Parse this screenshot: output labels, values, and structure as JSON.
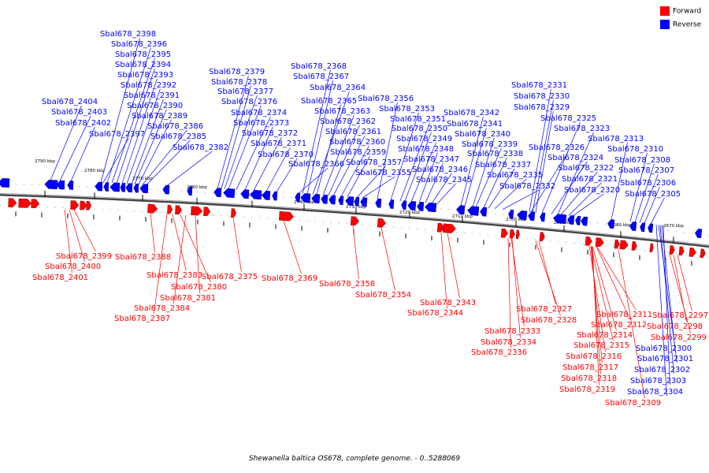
{
  "legend": {
    "forward_label": "Forward",
    "reverse_label": "Reverse",
    "forward_color": "#ff0000",
    "reverse_color": "#0000ff"
  },
  "caption": "Shewanella baltica OS678, complete genome. - 0..5288069",
  "ticks": [
    "2790 kbp",
    "2780 kbp",
    "2770 kbp",
    "2760 kbp",
    "2750 kbp",
    "2740 kbp",
    "2730 kbp",
    "2720 kbp",
    "2710 kbp",
    "2700 kbp",
    "2690 kbp",
    "2680 kbp",
    "2670 kbp"
  ],
  "reverse_labels": [
    "Sbal678_2398",
    "Sbal678_2396",
    "Sbal678_2395",
    "Sbal678_2394",
    "Sbal678_2393",
    "Sbal678_2392",
    "Sbal678_2391",
    "Sbal678_2390",
    "Sbal678_2389",
    "Sbal678_2386",
    "Sbal678_2385",
    "Sbal678_2382",
    "Sbal678_2397",
    "Sbal678_2404",
    "Sbal678_2403",
    "Sbal678_2402",
    "Sbal678_2379",
    "Sbal678_2378",
    "Sbal678_2377",
    "Sbal678_2376",
    "Sbal678_2374",
    "Sbal678_2373",
    "Sbal678_2372",
    "Sbal678_2371",
    "Sbal678_2370",
    "Sbal678_2366",
    "Sbal678_2368",
    "Sbal678_2367",
    "Sbal678_2364",
    "Sbal678_2365",
    "Sbal678_2363",
    "Sbal678_2362",
    "Sbal678_2361",
    "Sbal678_2360",
    "Sbal678_2359",
    "Sbal678_2357",
    "Sbal678_2355",
    "Sbal678_2356",
    "Sbal678_2353",
    "Sbal678_2351",
    "Sbal678_2350",
    "Sbal678_2349",
    "Sbal678_2348",
    "Sbal678_2347",
    "Sbal678_2346",
    "Sbal678_2345",
    "Sbal678_2342",
    "Sbal678_2341",
    "Sbal678_2340",
    "Sbal678_2339",
    "Sbal678_2338",
    "Sbal678_2337",
    "Sbal678_2335",
    "Sbal678_2332",
    "Sbal678_2331",
    "Sbal678_2330",
    "Sbal678_2329",
    "Sbal678_2325",
    "Sbal678_2323",
    "Sbal678_2326",
    "Sbal678_2324",
    "Sbal678_2322",
    "Sbal678_2321",
    "Sbal678_2320",
    "Sbal678_2313",
    "Sbal678_2310",
    "Sbal678_2308",
    "Sbal678_2307",
    "Sbal678_2306",
    "Sbal678_2305"
  ],
  "forward_labels": [
    "Sbal678_2399",
    "Sbal678_2400",
    "Sbal678_2401",
    "Sbal678_2388",
    "Sbal678_2383",
    "Sbal678_2380",
    "Sbal678_2381",
    "Sbal678_2384",
    "Sbal678_2387",
    "Sbal678_2375",
    "Sbal678_2369",
    "Sbal678_2358",
    "Sbal678_2354",
    "Sbal678_2343",
    "Sbal678_2344",
    "Sbal678_2327",
    "Sbal678_2328",
    "Sbal678_2333",
    "Sbal678_2334",
    "Sbal678_2336",
    "Sbal678_2311",
    "Sbal678_2312",
    "Sbal678_2314",
    "Sbal678_2315",
    "Sbal678_2316",
    "Sbal678_2317",
    "Sbal678_2318",
    "Sbal678_2319",
    "Sbal678_2309",
    "Sbal678_2297",
    "Sbal678_2298",
    "Sbal678_2299",
    "Sbal678_2300",
    "Sbal678_2301",
    "Sbal678_2302",
    "Sbal678_2303",
    "Sbal678_2304"
  ]
}
